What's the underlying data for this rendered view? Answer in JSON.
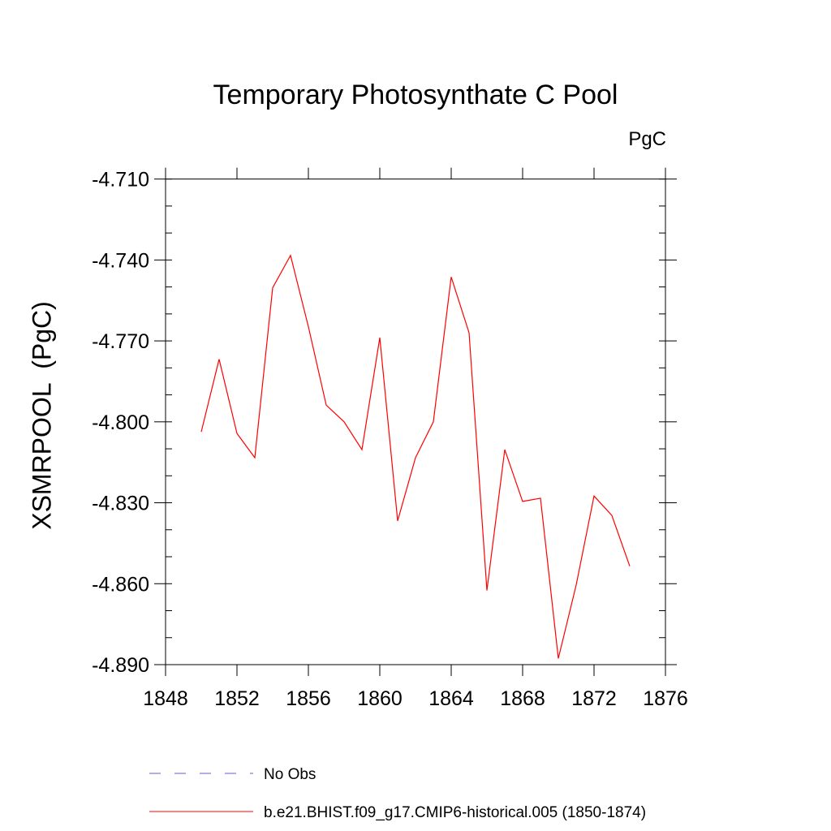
{
  "chart_data": {
    "type": "line",
    "title": "Temporary Photosynthate C Pool",
    "units_label": "PgC",
    "xlabel": "",
    "ylabel": "XSMRPOOL  (PgC)",
    "xlim": [
      1848,
      1876
    ],
    "ylim": [
      -4.89,
      -4.705
    ],
    "x_ticks": [
      1848,
      1852,
      1856,
      1860,
      1864,
      1868,
      1872,
      1876
    ],
    "x_tick_labels": [
      "1848",
      "1852",
      "1856",
      "1860",
      "1864",
      "1868",
      "1872",
      "1876"
    ],
    "y_ticks": [
      -4.71,
      -4.74,
      -4.77,
      -4.8,
      -4.83,
      -4.86,
      -4.89
    ],
    "y_tick_labels": [
      "-4.710",
      "-4.740",
      "-4.770",
      "-4.800",
      "-4.830",
      "-4.860",
      "-4.890"
    ],
    "series": [
      {
        "name": "b.e21.BHIST.f09_g17.CMIP6-historical.005 (1850-1874)",
        "color": "#ff0000",
        "style": "solid",
        "x": [
          1850,
          1851,
          1852,
          1853,
          1854,
          1855,
          1856,
          1857,
          1858,
          1859,
          1860,
          1861,
          1862,
          1863,
          1864,
          1865,
          1866,
          1867,
          1868,
          1869,
          1870,
          1871,
          1872,
          1873,
          1874
        ],
        "y": [
          -4.8037,
          -4.7768,
          -4.8043,
          -4.8133,
          -4.7503,
          -4.7383,
          -4.7647,
          -4.7938,
          -4.8,
          -4.8103,
          -4.7688,
          -4.8367,
          -4.8133,
          -4.8,
          -4.7463,
          -4.767,
          -4.8625,
          -4.8103,
          -4.8295,
          -4.8283,
          -4.8877,
          -4.8605,
          -4.8275,
          -4.8347,
          -4.8535
        ]
      }
    ],
    "legend": [
      {
        "label": "No Obs",
        "color": "#6a5acd",
        "style": "dashed"
      },
      {
        "label": "b.e21.BHIST.f09_g17.CMIP6-historical.005 (1850-1874)",
        "color": "#ff0000",
        "style": "solid"
      }
    ]
  }
}
